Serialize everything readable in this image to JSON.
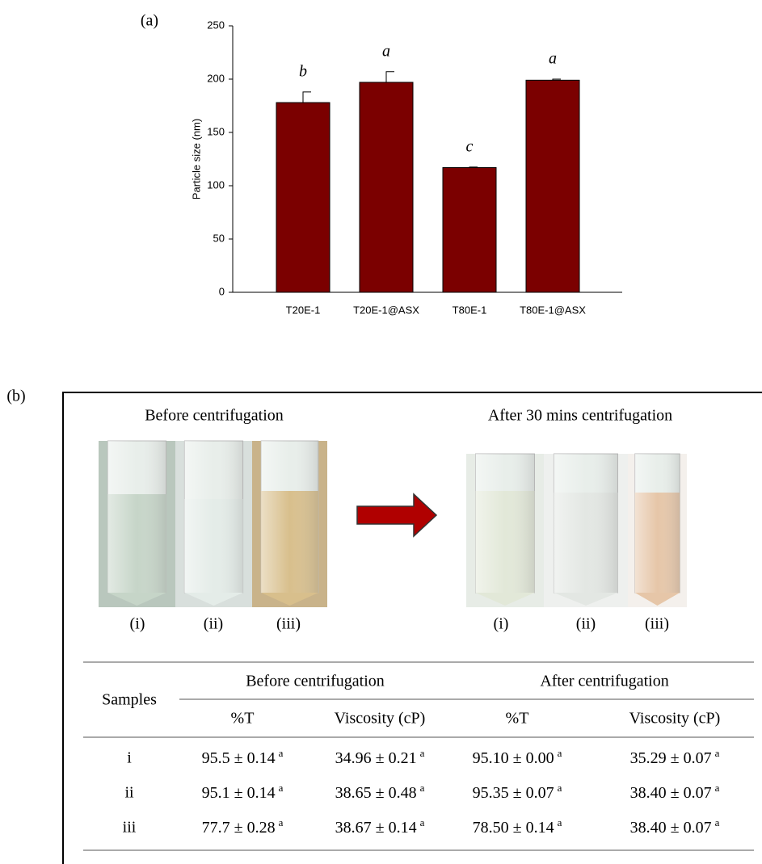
{
  "chart_data": {
    "type": "bar",
    "panel_label": "(a)",
    "y_label": "Particle size (nm)",
    "categories": [
      "T20E-1",
      "T20E-1@ASX",
      "T80E-1",
      "T80E-1@ASX"
    ],
    "values": [
      178,
      197,
      117,
      199
    ],
    "errors": [
      10,
      10,
      0.5,
      1
    ],
    "significance_letters": [
      "b",
      "a",
      "c",
      "a"
    ],
    "color": "#7b0000",
    "ylim": [
      0,
      250
    ],
    "yticks": [
      0,
      50,
      100,
      150,
      200,
      250
    ],
    "grid": false
  },
  "panel_b": {
    "label": "(b)",
    "before_title": "Before centrifugation",
    "after_title": "After 30 mins centrifugation",
    "before_tubes": [
      "(i)",
      "(ii)",
      "(iii)"
    ],
    "after_tubes": [
      "(i)",
      "(ii)",
      "(iii)"
    ],
    "table": {
      "col_header": "Samples",
      "groups": [
        "Before centrifugation",
        "After centrifugation"
      ],
      "subheaders": [
        "%T",
        "Viscosity (cP)",
        "%T",
        "Viscosity (cP)"
      ],
      "rows": [
        {
          "sample": "i",
          "cells": [
            {
              "text": "95.5 ± 0.14",
              "sup": "a"
            },
            {
              "text": "34.96 ± 0.21",
              "sup": "a"
            },
            {
              "text": "95.10 ± 0.00",
              "sup": "a"
            },
            {
              "text": "35.29 ± 0.07",
              "sup": "a"
            }
          ]
        },
        {
          "sample": "ii",
          "cells": [
            {
              "text": "95.1 ± 0.14",
              "sup": "a"
            },
            {
              "text": "38.65 ± 0.48",
              "sup": "a"
            },
            {
              "text": "95.35 ± 0.07",
              "sup": "a"
            },
            {
              "text": "38.40 ± 0.07",
              "sup": "a"
            }
          ]
        },
        {
          "sample": "iii",
          "cells": [
            {
              "text": "77.7 ± 0.28",
              "sup": "a"
            },
            {
              "text": "38.67 ± 0.14",
              "sup": "a"
            },
            {
              "text": "78.50 ± 0.14",
              "sup": "a"
            },
            {
              "text": "38.40 ± 0.07",
              "sup": "a"
            }
          ]
        }
      ]
    }
  }
}
